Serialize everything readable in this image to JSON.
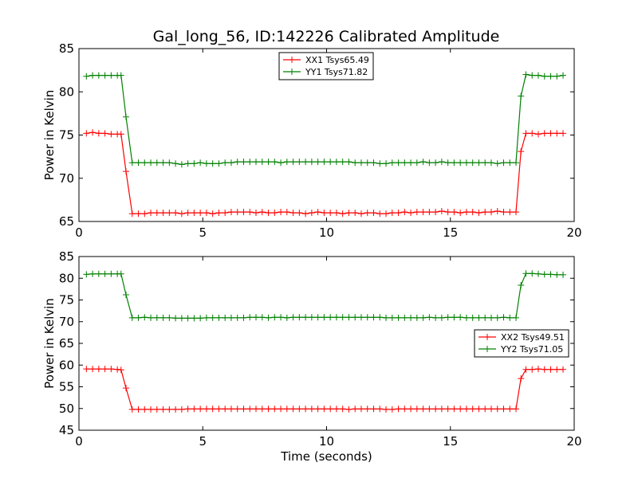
{
  "figure_title": "Gal_long_56, ID:142226 Calibrated Amplitude",
  "chart_data": [
    {
      "type": "line",
      "title": "Gal_long_56, ID:142226 Calibrated Amplitude",
      "xlabel": "",
      "ylabel": "Power in Kelvin",
      "xlim": [
        0,
        20
      ],
      "ylim": [
        65,
        85
      ],
      "xticks": [
        0,
        5,
        10,
        15,
        20
      ],
      "yticks": [
        65,
        70,
        75,
        80,
        85
      ],
      "grid": false,
      "legend_position": "top-center",
      "x": [
        0.3,
        0.55,
        0.8,
        1.05,
        1.3,
        1.55,
        1.7,
        1.9,
        2.15,
        2.4,
        2.65,
        2.9,
        3.15,
        3.4,
        3.65,
        3.9,
        4.15,
        4.4,
        4.65,
        4.9,
        5.15,
        5.4,
        5.65,
        5.9,
        6.15,
        6.4,
        6.65,
        6.9,
        7.15,
        7.4,
        7.65,
        7.9,
        8.15,
        8.4,
        8.65,
        8.9,
        9.15,
        9.4,
        9.65,
        9.9,
        10.15,
        10.4,
        10.65,
        10.9,
        11.15,
        11.4,
        11.65,
        11.9,
        12.15,
        12.4,
        12.65,
        12.9,
        13.15,
        13.4,
        13.65,
        13.9,
        14.15,
        14.4,
        14.65,
        14.9,
        15.15,
        15.4,
        15.65,
        15.9,
        16.15,
        16.4,
        16.65,
        16.9,
        17.15,
        17.4,
        17.65,
        17.85,
        18.05,
        18.3,
        18.55,
        18.8,
        19.05,
        19.3,
        19.55
      ],
      "series": [
        {
          "name": "XX1 Tsys65.49",
          "color": "#ff0000",
          "values": [
            75.2,
            75.3,
            75.2,
            75.2,
            75.1,
            75.1,
            75.1,
            70.8,
            65.9,
            65.9,
            65.9,
            66.0,
            66.0,
            66.0,
            66.0,
            66.0,
            65.9,
            66.0,
            66.0,
            66.0,
            66.0,
            65.9,
            66.0,
            66.0,
            66.1,
            66.1,
            66.1,
            66.1,
            66.0,
            66.1,
            66.0,
            66.0,
            66.1,
            66.1,
            66.0,
            66.0,
            65.9,
            66.0,
            66.1,
            66.0,
            66.0,
            66.0,
            65.9,
            66.0,
            66.0,
            65.9,
            66.0,
            66.0,
            65.9,
            65.9,
            66.0,
            66.0,
            66.1,
            66.0,
            66.1,
            66.1,
            66.1,
            66.1,
            66.2,
            66.1,
            66.1,
            66.0,
            66.1,
            66.1,
            66.0,
            66.1,
            66.1,
            66.2,
            66.1,
            66.1,
            66.1,
            73.1,
            75.2,
            75.2,
            75.1,
            75.2,
            75.2,
            75.2,
            75.2
          ]
        },
        {
          "name": "YY1 Tsys71.82",
          "color": "#008000",
          "values": [
            81.8,
            81.9,
            81.9,
            81.9,
            81.9,
            81.9,
            81.9,
            77.1,
            71.8,
            71.8,
            71.8,
            71.8,
            71.8,
            71.8,
            71.8,
            71.7,
            71.6,
            71.7,
            71.7,
            71.8,
            71.7,
            71.7,
            71.7,
            71.8,
            71.8,
            71.9,
            71.9,
            71.9,
            71.9,
            71.9,
            71.9,
            71.9,
            71.8,
            71.9,
            71.9,
            71.9,
            71.9,
            71.9,
            71.9,
            71.9,
            71.9,
            71.9,
            71.9,
            71.9,
            71.8,
            71.8,
            71.8,
            71.8,
            71.7,
            71.7,
            71.8,
            71.8,
            71.8,
            71.8,
            71.8,
            71.9,
            71.8,
            71.8,
            71.9,
            71.8,
            71.8,
            71.8,
            71.8,
            71.8,
            71.8,
            71.8,
            71.8,
            71.7,
            71.8,
            71.8,
            71.8,
            79.5,
            82.0,
            81.9,
            81.9,
            81.8,
            81.8,
            81.8,
            81.9
          ]
        }
      ]
    },
    {
      "type": "line",
      "title": "",
      "xlabel": "Time (seconds)",
      "ylabel": "Power in Kelvin",
      "xlim": [
        0,
        20
      ],
      "ylim": [
        45,
        85
      ],
      "xticks": [
        0,
        5,
        10,
        15,
        20
      ],
      "yticks": [
        45,
        50,
        55,
        60,
        65,
        70,
        75,
        80,
        85
      ],
      "grid": false,
      "legend_position": "center-right",
      "x": [
        0.3,
        0.55,
        0.8,
        1.05,
        1.3,
        1.55,
        1.7,
        1.9,
        2.15,
        2.4,
        2.65,
        2.9,
        3.15,
        3.4,
        3.65,
        3.9,
        4.15,
        4.4,
        4.65,
        4.9,
        5.15,
        5.4,
        5.65,
        5.9,
        6.15,
        6.4,
        6.65,
        6.9,
        7.15,
        7.4,
        7.65,
        7.9,
        8.15,
        8.4,
        8.65,
        8.9,
        9.15,
        9.4,
        9.65,
        9.9,
        10.15,
        10.4,
        10.65,
        10.9,
        11.15,
        11.4,
        11.65,
        11.9,
        12.15,
        12.4,
        12.65,
        12.9,
        13.15,
        13.4,
        13.65,
        13.9,
        14.15,
        14.4,
        14.65,
        14.9,
        15.15,
        15.4,
        15.65,
        15.9,
        16.15,
        16.4,
        16.65,
        16.9,
        17.15,
        17.4,
        17.65,
        17.85,
        18.05,
        18.3,
        18.55,
        18.8,
        19.05,
        19.3,
        19.55
      ],
      "series": [
        {
          "name": "XX2 Tsys49.51",
          "color": "#ff0000",
          "values": [
            59.1,
            59.1,
            59.1,
            59.1,
            59.1,
            59.0,
            58.9,
            54.7,
            49.8,
            49.8,
            49.8,
            49.8,
            49.8,
            49.8,
            49.8,
            49.8,
            49.8,
            49.9,
            49.9,
            49.9,
            49.9,
            49.9,
            49.9,
            49.9,
            49.9,
            49.9,
            49.9,
            49.9,
            49.9,
            49.9,
            49.9,
            49.9,
            49.9,
            49.9,
            49.9,
            49.9,
            49.9,
            49.9,
            49.9,
            49.9,
            49.9,
            49.9,
            49.9,
            49.8,
            49.9,
            49.9,
            49.9,
            49.9,
            49.9,
            49.8,
            49.8,
            49.9,
            49.9,
            49.9,
            49.9,
            49.9,
            49.9,
            49.9,
            49.9,
            49.9,
            49.9,
            49.9,
            49.9,
            49.9,
            49.9,
            49.9,
            49.9,
            49.9,
            49.9,
            49.9,
            49.9,
            56.9,
            59.0,
            59.0,
            59.1,
            59.0,
            59.0,
            59.0,
            59.0
          ]
        },
        {
          "name": "YY2 Tsys71.05",
          "color": "#008000",
          "values": [
            80.9,
            81.0,
            81.0,
            81.0,
            81.0,
            81.0,
            81.0,
            76.2,
            70.9,
            70.9,
            71.0,
            70.9,
            70.9,
            70.9,
            70.9,
            70.8,
            70.8,
            70.8,
            70.8,
            70.8,
            70.9,
            70.9,
            70.9,
            70.9,
            70.9,
            70.9,
            70.9,
            71.0,
            71.0,
            71.0,
            70.9,
            71.0,
            71.0,
            70.9,
            71.0,
            71.0,
            71.0,
            71.0,
            71.0,
            71.0,
            71.0,
            71.0,
            71.0,
            71.0,
            71.0,
            71.0,
            71.0,
            71.0,
            71.0,
            70.9,
            70.9,
            70.9,
            70.9,
            70.9,
            70.9,
            70.9,
            71.0,
            70.9,
            70.9,
            71.0,
            71.0,
            71.0,
            70.9,
            70.9,
            70.9,
            70.9,
            70.9,
            70.9,
            71.0,
            70.9,
            70.9,
            78.4,
            81.1,
            81.1,
            81.0,
            80.9,
            80.9,
            80.8,
            80.8
          ]
        }
      ]
    }
  ]
}
